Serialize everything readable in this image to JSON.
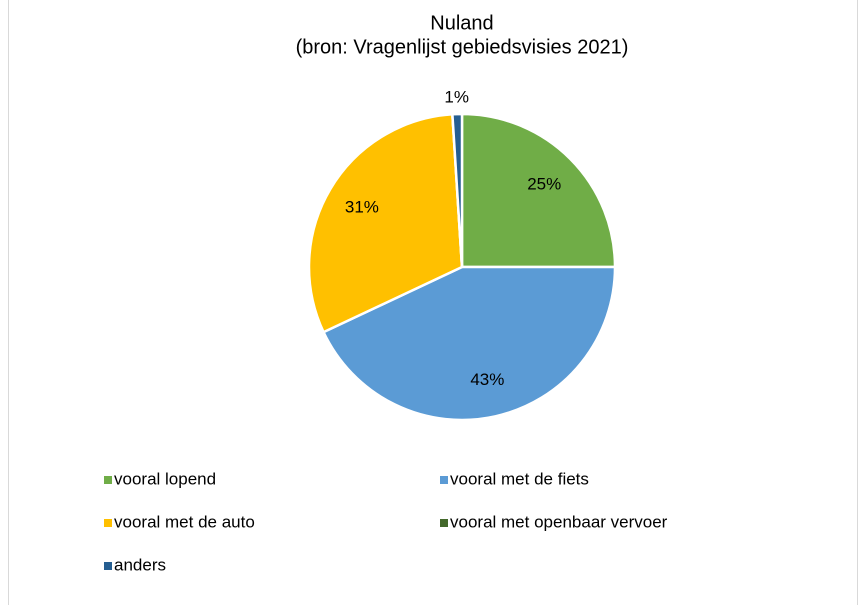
{
  "chart_data": {
    "type": "pie",
    "title": "Nuland",
    "subtitle": "(bron: Vragenlijst gebiedsvisies 2021)",
    "categories": [
      "vooral lopend",
      "vooral met de fiets",
      "vooral met de auto",
      "vooral met openbaar vervoer",
      "anders"
    ],
    "values": [
      25,
      43,
      31,
      0,
      1
    ],
    "value_labels": [
      "25%",
      "43%",
      "31%",
      null,
      "1%"
    ],
    "colors": [
      "#70ad47",
      "#5b9bd5",
      "#ffc000",
      "#43682b",
      "#255e91"
    ],
    "legend": "bottom"
  }
}
